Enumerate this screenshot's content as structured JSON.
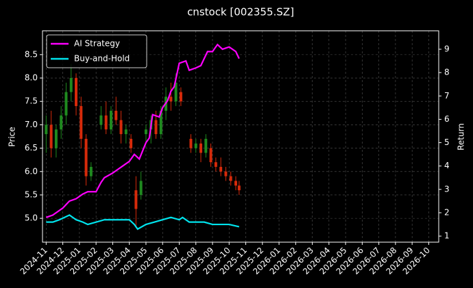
{
  "chart_data": {
    "type": "candlestick",
    "title": "cnstock [002355.SZ]",
    "ylabel": "Price",
    "y2label": "Return",
    "xlim": [
      -0.22,
      23.6
    ],
    "ylim": [
      4.49,
      9.01
    ],
    "y2lim": [
      0.74,
      9.79
    ],
    "xticks": [
      {
        "value": 0,
        "label": "2024-11"
      },
      {
        "value": 1,
        "label": "2024-12"
      },
      {
        "value": 2,
        "label": "2025-01"
      },
      {
        "value": 3,
        "label": "2025-02"
      },
      {
        "value": 4,
        "label": "2025-03"
      },
      {
        "value": 5,
        "label": "2025-04"
      },
      {
        "value": 6,
        "label": "2025-05"
      },
      {
        "value": 7,
        "label": "2025-06"
      },
      {
        "value": 8,
        "label": "2025-07"
      },
      {
        "value": 9,
        "label": "2025-08"
      },
      {
        "value": 10,
        "label": "2025-09"
      },
      {
        "value": 11,
        "label": "2025-10"
      },
      {
        "value": 12,
        "label": "2025-11"
      },
      {
        "value": 13,
        "label": "2025-12"
      },
      {
        "value": 14,
        "label": "2026-01"
      },
      {
        "value": 15,
        "label": "2026-02"
      },
      {
        "value": 16,
        "label": "2026-03"
      },
      {
        "value": 17,
        "label": "2026-04"
      },
      {
        "value": 18,
        "label": "2026-05"
      },
      {
        "value": 19,
        "label": "2026-06"
      },
      {
        "value": 20,
        "label": "2026-07"
      },
      {
        "value": 21,
        "label": "2026-08"
      },
      {
        "value": 22,
        "label": "2026-09"
      },
      {
        "value": 23,
        "label": "2026-10"
      }
    ],
    "yticks": [
      {
        "value": 5,
        "label": "5.0"
      },
      5.5,
      {
        "value": 6,
        "label": "6.0"
      },
      6.5,
      {
        "value": 7,
        "label": "7.0"
      },
      7.5,
      {
        "value": 8,
        "label": "8.0"
      },
      8.5
    ],
    "y2ticks": [
      1,
      2,
      3,
      4,
      5,
      6,
      7,
      8,
      9
    ],
    "grid": true,
    "legend": "upper left",
    "candles": {
      "up_color": "#1f8a1f",
      "down_color": "#d62a0a",
      "x": [
        0.0,
        0.3,
        0.6,
        0.9,
        1.2,
        1.5,
        1.8,
        2.1,
        2.4,
        2.7,
        3.3,
        3.6,
        3.9,
        4.2,
        4.5,
        4.8,
        5.1,
        5.4,
        5.7,
        6.0,
        6.3,
        6.6,
        6.9,
        7.2,
        7.5,
        7.8,
        8.1,
        8.7,
        9.0,
        9.3,
        9.6,
        9.9,
        10.2,
        10.5,
        10.8,
        11.1,
        11.4,
        11.6
      ],
      "open": [
        6.8,
        7.0,
        6.5,
        6.9,
        7.2,
        7.7,
        8.0,
        7.4,
        6.7,
        5.9,
        7.0,
        7.2,
        6.9,
        7.3,
        7.1,
        6.8,
        6.7,
        5.6,
        5.5,
        6.8,
        6.9,
        7.1,
        6.8,
        7.3,
        7.6,
        7.5,
        7.7,
        6.7,
        6.5,
        6.6,
        6.4,
        6.5,
        6.2,
        6.1,
        6.0,
        5.9,
        5.8,
        5.7
      ],
      "high": [
        7.2,
        7.3,
        7.0,
        7.4,
        7.9,
        8.3,
        8.1,
        7.6,
        6.8,
        6.2,
        7.4,
        7.5,
        7.4,
        7.6,
        7.3,
        7.0,
        6.8,
        5.9,
        6.0,
        7.0,
        7.2,
        7.3,
        7.4,
        7.8,
        7.9,
        8.1,
        7.8,
        6.8,
        6.7,
        6.7,
        6.8,
        6.6,
        6.3,
        6.3,
        6.1,
        6.0,
        5.9,
        5.8
      ],
      "low": [
        6.4,
        6.3,
        6.3,
        6.7,
        7.0,
        7.5,
        7.2,
        6.5,
        5.7,
        5.8,
        6.9,
        6.8,
        6.8,
        7.0,
        6.6,
        6.6,
        6.4,
        4.8,
        5.4,
        6.6,
        6.6,
        6.7,
        6.7,
        7.1,
        7.3,
        7.4,
        7.4,
        6.4,
        6.4,
        6.2,
        6.3,
        6.1,
        6.0,
        5.9,
        5.8,
        5.7,
        5.6,
        5.5
      ],
      "close": [
        7.0,
        6.5,
        6.9,
        7.2,
        7.7,
        8.0,
        7.4,
        6.7,
        5.9,
        6.1,
        7.2,
        6.9,
        7.3,
        7.1,
        6.8,
        6.9,
        6.5,
        5.2,
        5.8,
        6.9,
        7.1,
        6.8,
        7.3,
        7.6,
        7.5,
        7.9,
        7.5,
        6.5,
        6.6,
        6.4,
        6.7,
        6.2,
        6.1,
        6.0,
        5.9,
        5.8,
        5.7,
        5.6
      ]
    },
    "series": [
      {
        "name": "AI Strategy",
        "color": "#ff00ff",
        "axis": "y2",
        "x": [
          0,
          0.4,
          1,
          1.4,
          1.8,
          2.2,
          2.5,
          3,
          3.3,
          3.5,
          4,
          4.2,
          4.6,
          5,
          5.3,
          5.6,
          6,
          6.2,
          6.4,
          6.8,
          7,
          7.3,
          7.5,
          7.7,
          8,
          8.4,
          8.6,
          9,
          9.3,
          9.7,
          10,
          10.3,
          10.6,
          11,
          11.4,
          11.6
        ],
        "values": [
          1.8,
          1.9,
          2.2,
          2.5,
          2.6,
          2.8,
          2.9,
          2.9,
          3.3,
          3.5,
          3.7,
          3.8,
          4.0,
          4.2,
          4.5,
          4.3,
          5.0,
          5.2,
          6.2,
          6.1,
          6.5,
          6.8,
          7.2,
          7.4,
          8.4,
          8.5,
          8.1,
          8.2,
          8.3,
          8.9,
          8.9,
          9.2,
          9.0,
          9.1,
          8.9,
          8.6
        ]
      },
      {
        "name": "Buy-and-Hold",
        "color": "#00e5ee",
        "axis": "y2",
        "x": [
          0,
          0.4,
          0.8,
          1.4,
          1.8,
          2.2,
          2.5,
          3,
          3.5,
          4,
          4.5,
          5,
          5.3,
          5.5,
          6,
          6.5,
          7,
          7.5,
          8,
          8.2,
          8.6,
          9,
          9.5,
          10,
          10.5,
          11,
          11.6
        ],
        "values": [
          1.6,
          1.6,
          1.7,
          1.9,
          1.7,
          1.6,
          1.5,
          1.6,
          1.7,
          1.7,
          1.7,
          1.7,
          1.5,
          1.3,
          1.5,
          1.6,
          1.7,
          1.8,
          1.7,
          1.8,
          1.6,
          1.6,
          1.6,
          1.5,
          1.5,
          1.5,
          1.4
        ]
      }
    ]
  }
}
